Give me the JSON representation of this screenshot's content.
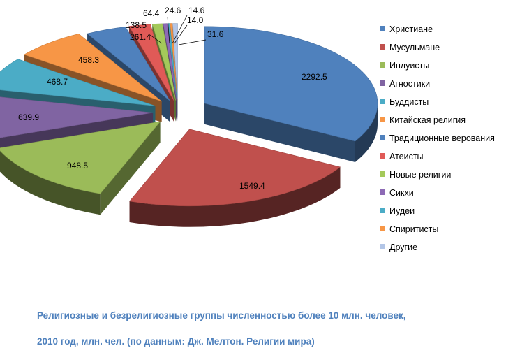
{
  "chart_data": {
    "type": "pie",
    "categories": [
      "Христиане",
      "Мусульмане",
      "Индуисты",
      "Агностики",
      "Буддисты",
      "Китайская религия",
      "Традиционные верования",
      "Атеисты",
      "Новые религии",
      "Сикхи",
      "Иудеи",
      "Спиритисты",
      "Другие"
    ],
    "values": [
      2292.5,
      1549.4,
      948.5,
      639.9,
      468.7,
      458.3,
      261.4,
      138.5,
      64.4,
      24.6,
      14.6,
      14.0,
      31.6
    ],
    "colors": [
      "#4f81bd",
      "#c0504d",
      "#9bbb59",
      "#8064a2",
      "#4bacc6",
      "#f79646",
      "#4f81bd",
      "#e05a57",
      "#a4c95a",
      "#8d6ab5",
      "#4bacc6",
      "#f79646",
      "#b3c6e7"
    ],
    "value_labels": [
      "2292.5",
      "1549.4",
      "948.5",
      "639.9",
      "468.7",
      "458.3",
      "261.4",
      "138.5",
      "64.4",
      "24.6",
      "14.6",
      "14.0",
      "31.6"
    ],
    "style": "3d-exploded",
    "legend_position": "right"
  },
  "caption": {
    "line1": "Религиозные и безрелигиозные группы численностью более 10 млн. человек,",
    "line2": "2010 год, млн. чел. (по данным: Дж. Мелтон. Религии мира)"
  }
}
